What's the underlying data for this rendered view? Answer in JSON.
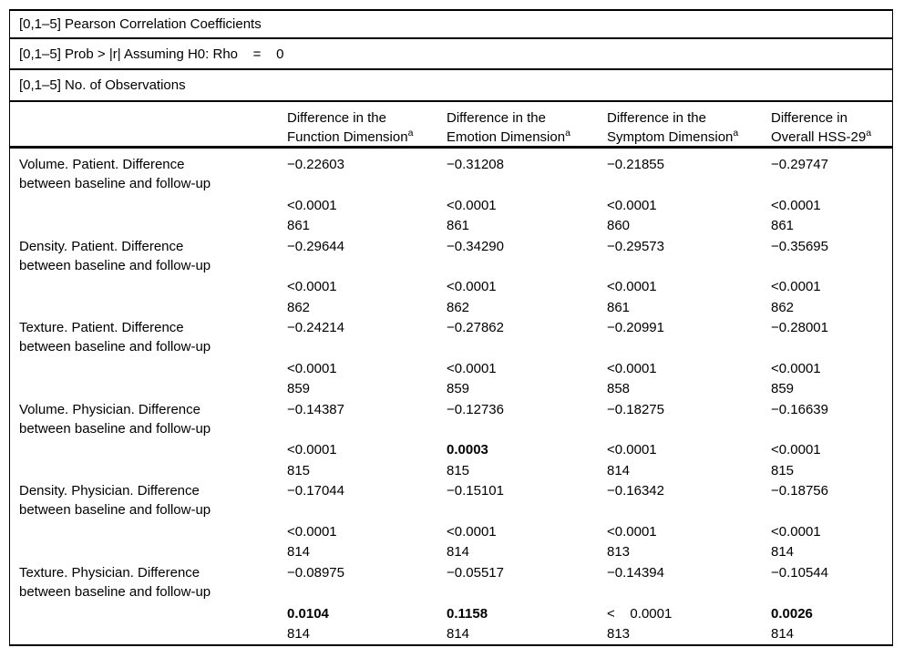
{
  "table": {
    "title_rows": [
      "[0,1–5] Pearson Correlation Coefficients",
      "[0,1–5] Prob > |r| Assuming H0: Rho    =    0",
      "[0,1–5] No. of Observations"
    ],
    "columns": [
      {
        "line1": "Difference in the",
        "line2": "Function Dimension",
        "sup": "a"
      },
      {
        "line1": "Difference in the",
        "line2": "Emotion Dimension",
        "sup": "a"
      },
      {
        "line1": "Difference in the",
        "line2": "Symptom Dimension",
        "sup": "a"
      },
      {
        "line1": "Difference in",
        "line2": "Overall HSS-29",
        "sup": "a"
      }
    ],
    "rows": [
      {
        "label_line1": "Volume. Patient. Difference",
        "label_line2": "between baseline and follow-up",
        "cells": [
          {
            "r": "−0.22603",
            "p": "<0.0001",
            "p_bold": "false",
            "n": "861"
          },
          {
            "r": "−0.31208",
            "p": "<0.0001",
            "p_bold": "false",
            "n": "861"
          },
          {
            "r": "−0.21855",
            "p": "<0.0001",
            "p_bold": "false",
            "n": "860"
          },
          {
            "r": "−0.29747",
            "p": "<0.0001",
            "p_bold": "false",
            "n": "861"
          }
        ]
      },
      {
        "label_line1": "Density. Patient. Difference",
        "label_line2": "between baseline and follow-up",
        "cells": [
          {
            "r": "−0.29644",
            "p": "<0.0001",
            "p_bold": "false",
            "n": "862"
          },
          {
            "r": "−0.34290",
            "p": "<0.0001",
            "p_bold": "false",
            "n": "862"
          },
          {
            "r": "−0.29573",
            "p": "<0.0001",
            "p_bold": "false",
            "n": "861"
          },
          {
            "r": "−0.35695",
            "p": "<0.0001",
            "p_bold": "false",
            "n": "862"
          }
        ]
      },
      {
        "label_line1": "Texture. Patient. Difference",
        "label_line2": "between baseline and follow-up",
        "cells": [
          {
            "r": "−0.24214",
            "p": "<0.0001",
            "p_bold": "false",
            "n": "859"
          },
          {
            "r": "−0.27862",
            "p": "<0.0001",
            "p_bold": "false",
            "n": "859"
          },
          {
            "r": "−0.20991",
            "p": "<0.0001",
            "p_bold": "false",
            "n": "858"
          },
          {
            "r": "−0.28001",
            "p": "<0.0001",
            "p_bold": "false",
            "n": "859"
          }
        ]
      },
      {
        "label_line1": "Volume. Physician. Difference",
        "label_line2": "between baseline and follow-up",
        "cells": [
          {
            "r": "−0.14387",
            "p": "<0.0001",
            "p_bold": "false",
            "n": "815"
          },
          {
            "r": "−0.12736",
            "p": "0.0003",
            "p_bold": "true",
            "n": "815"
          },
          {
            "r": "−0.18275",
            "p": "<0.0001",
            "p_bold": "false",
            "n": "814"
          },
          {
            "r": "−0.16639",
            "p": "<0.0001",
            "p_bold": "false",
            "n": "815"
          }
        ]
      },
      {
        "label_line1": "Density. Physician. Difference",
        "label_line2": "between baseline and follow-up",
        "cells": [
          {
            "r": "−0.17044",
            "p": "<0.0001",
            "p_bold": "false",
            "n": "814"
          },
          {
            "r": "−0.15101",
            "p": "<0.0001",
            "p_bold": "false",
            "n": "814"
          },
          {
            "r": "−0.16342",
            "p": "<0.0001",
            "p_bold": "false",
            "n": "813"
          },
          {
            "r": "−0.18756",
            "p": "<0.0001",
            "p_bold": "false",
            "n": "814"
          }
        ]
      },
      {
        "label_line1": "Texture. Physician. Difference",
        "label_line2": "between baseline and follow-up",
        "cells": [
          {
            "r": "−0.08975",
            "p": "0.0104",
            "p_bold": "true",
            "n": "814"
          },
          {
            "r": "−0.05517",
            "p": "0.1158",
            "p_bold": "true",
            "n": "814"
          },
          {
            "r": "−0.14394",
            "p": "<    0.0001",
            "p_bold": "false",
            "n": "813"
          },
          {
            "r": "−0.10544",
            "p": "0.0026",
            "p_bold": "true",
            "n": "814"
          }
        ]
      }
    ]
  }
}
